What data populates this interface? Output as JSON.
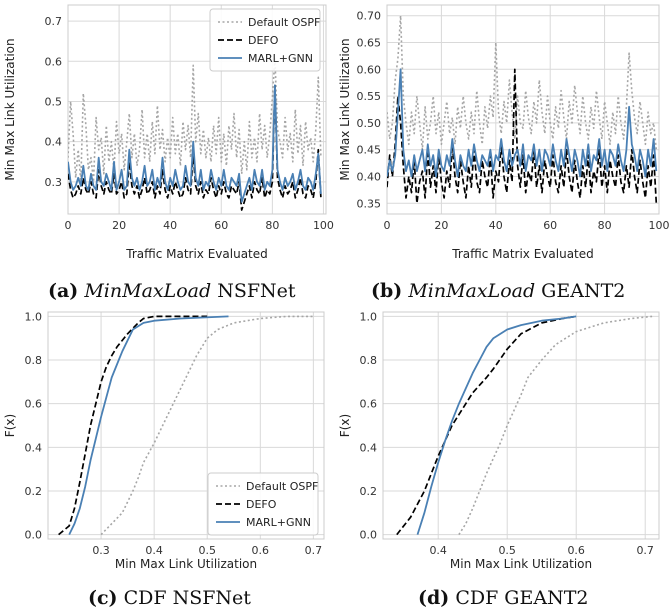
{
  "colors": {
    "ospf": "#a6a6a6",
    "defo": "#000000",
    "marl": "#4a80b4",
    "grid": "#d9d9d9",
    "axes": "#cccccc"
  },
  "captions": [
    {
      "label": "(a)",
      "italic": "MinMaxLoad",
      "rest": "NSFNet"
    },
    {
      "label": "(b)",
      "italic": "MinMaxLoad",
      "rest": "GEANT2"
    },
    {
      "label": "(c)",
      "italic": "",
      "rest": "CDF NSFNet"
    },
    {
      "label": "(d)",
      "italic": "",
      "rest": "CDF GEANT2"
    }
  ],
  "chart_data": [
    {
      "type": "line",
      "xlabel": "Traffic Matrix Evaluated",
      "ylabel": "Min Max Link Utilization",
      "xlim": [
        0,
        101
      ],
      "ylim": [
        0.22,
        0.74
      ],
      "xticks": [
        0,
        20,
        40,
        60,
        80,
        100
      ],
      "yticks": [
        0.3,
        0.4,
        0.5,
        0.6,
        0.7
      ],
      "ytick_labels": [
        "0.3",
        "0.4",
        "0.5",
        "0.6",
        "0.7"
      ],
      "grid": true,
      "legend": "top-right",
      "series": [
        {
          "name": "Default OSPF",
          "style": "dotted",
          "values": [
            0.36,
            0.5,
            0.42,
            0.31,
            0.38,
            0.3,
            0.52,
            0.44,
            0.33,
            0.36,
            0.3,
            0.46,
            0.38,
            0.41,
            0.32,
            0.44,
            0.35,
            0.4,
            0.33,
            0.45,
            0.37,
            0.42,
            0.33,
            0.4,
            0.47,
            0.36,
            0.42,
            0.34,
            0.38,
            0.48,
            0.36,
            0.42,
            0.35,
            0.45,
            0.37,
            0.49,
            0.38,
            0.43,
            0.35,
            0.41,
            0.36,
            0.46,
            0.37,
            0.42,
            0.34,
            0.45,
            0.38,
            0.44,
            0.36,
            0.59,
            0.4,
            0.47,
            0.37,
            0.43,
            0.36,
            0.41,
            0.35,
            0.44,
            0.37,
            0.46,
            0.35,
            0.42,
            0.34,
            0.44,
            0.38,
            0.47,
            0.36,
            0.43,
            0.32,
            0.4,
            0.33,
            0.45,
            0.36,
            0.41,
            0.35,
            0.47,
            0.38,
            0.44,
            0.36,
            0.42,
            0.51,
            0.61,
            0.43,
            0.4,
            0.36,
            0.46,
            0.38,
            0.42,
            0.35,
            0.48,
            0.37,
            0.44,
            0.34,
            0.45,
            0.38,
            0.41,
            0.35,
            0.43,
            0.56,
            0.36
          ]
        },
        {
          "name": "DEFO",
          "style": "dashed",
          "values": [
            0.32,
            0.28,
            0.26,
            0.27,
            0.29,
            0.27,
            0.31,
            0.28,
            0.27,
            0.3,
            0.27,
            0.26,
            0.33,
            0.29,
            0.27,
            0.3,
            0.28,
            0.27,
            0.32,
            0.27,
            0.28,
            0.3,
            0.26,
            0.27,
            0.35,
            0.29,
            0.27,
            0.29,
            0.26,
            0.28,
            0.31,
            0.27,
            0.28,
            0.3,
            0.26,
            0.29,
            0.27,
            0.33,
            0.28,
            0.26,
            0.29,
            0.27,
            0.3,
            0.28,
            0.26,
            0.27,
            0.31,
            0.28,
            0.27,
            0.37,
            0.29,
            0.27,
            0.3,
            0.26,
            0.28,
            0.27,
            0.31,
            0.28,
            0.26,
            0.29,
            0.27,
            0.3,
            0.27,
            0.26,
            0.29,
            0.28,
            0.27,
            0.3,
            0.23,
            0.25,
            0.27,
            0.29,
            0.26,
            0.3,
            0.28,
            0.27,
            0.31,
            0.26,
            0.28,
            0.27,
            0.3,
            0.54,
            0.31,
            0.28,
            0.26,
            0.29,
            0.27,
            0.28,
            0.3,
            0.26,
            0.28,
            0.31,
            0.27,
            0.26,
            0.29,
            0.28,
            0.26,
            0.3,
            0.38,
            0.26
          ]
        },
        {
          "name": "MARL+GNN",
          "style": "solid",
          "values": [
            0.35,
            0.3,
            0.28,
            0.29,
            0.31,
            0.29,
            0.34,
            0.29,
            0.28,
            0.32,
            0.29,
            0.28,
            0.36,
            0.3,
            0.29,
            0.32,
            0.3,
            0.28,
            0.35,
            0.28,
            0.3,
            0.33,
            0.28,
            0.29,
            0.38,
            0.31,
            0.29,
            0.31,
            0.28,
            0.3,
            0.34,
            0.29,
            0.3,
            0.33,
            0.28,
            0.31,
            0.29,
            0.36,
            0.3,
            0.28,
            0.31,
            0.29,
            0.33,
            0.3,
            0.28,
            0.29,
            0.34,
            0.3,
            0.29,
            0.4,
            0.31,
            0.29,
            0.33,
            0.28,
            0.3,
            0.29,
            0.33,
            0.3,
            0.28,
            0.31,
            0.29,
            0.33,
            0.29,
            0.28,
            0.31,
            0.3,
            0.29,
            0.32,
            0.25,
            0.27,
            0.29,
            0.31,
            0.28,
            0.33,
            0.3,
            0.29,
            0.33,
            0.28,
            0.3,
            0.29,
            0.33,
            0.54,
            0.33,
            0.3,
            0.28,
            0.31,
            0.29,
            0.3,
            0.32,
            0.28,
            0.3,
            0.33,
            0.29,
            0.28,
            0.31,
            0.3,
            0.28,
            0.32,
            0.37,
            0.27
          ]
        }
      ]
    },
    {
      "type": "line",
      "xlabel": "Traffic Matrix Evaluated",
      "ylabel": "Min Max Link Utilization",
      "xlim": [
        0,
        100
      ],
      "ylim": [
        0.33,
        0.72
      ],
      "xticks": [
        0,
        20,
        40,
        60,
        80,
        100
      ],
      "yticks": [
        0.35,
        0.4,
        0.45,
        0.5,
        0.55,
        0.6,
        0.65,
        0.7
      ],
      "ytick_labels": [
        "0.35",
        "0.40",
        "0.45",
        "0.50",
        "0.55",
        "0.60",
        "0.65",
        "0.70"
      ],
      "grid": true,
      "legend": "",
      "series": [
        {
          "name": "Default OSPF",
          "style": "dotted",
          "values": [
            0.52,
            0.47,
            0.5,
            0.58,
            0.62,
            0.7,
            0.55,
            0.5,
            0.46,
            0.52,
            0.48,
            0.55,
            0.5,
            0.45,
            0.53,
            0.47,
            0.5,
            0.55,
            0.48,
            0.52,
            0.46,
            0.5,
            0.54,
            0.48,
            0.51,
            0.46,
            0.53,
            0.49,
            0.55,
            0.5,
            0.47,
            0.52,
            0.48,
            0.56,
            0.5,
            0.46,
            0.53,
            0.49,
            0.55,
            0.51,
            0.65,
            0.52,
            0.48,
            0.54,
            0.5,
            0.58,
            0.52,
            0.47,
            0.55,
            0.5,
            0.49,
            0.56,
            0.51,
            0.48,
            0.54,
            0.5,
            0.58,
            0.52,
            0.48,
            0.55,
            0.5,
            0.47,
            0.53,
            0.49,
            0.56,
            0.51,
            0.47,
            0.54,
            0.5,
            0.57,
            0.52,
            0.48,
            0.55,
            0.5,
            0.47,
            0.53,
            0.49,
            0.56,
            0.51,
            0.47,
            0.54,
            0.5,
            0.46,
            0.52,
            0.48,
            0.55,
            0.5,
            0.47,
            0.53,
            0.63,
            0.56,
            0.51,
            0.48,
            0.54,
            0.5,
            0.46,
            0.52,
            0.48,
            0.5,
            0.45
          ]
        },
        {
          "name": "DEFO",
          "style": "dashed",
          "values": [
            0.38,
            0.44,
            0.4,
            0.46,
            0.55,
            0.5,
            0.42,
            0.36,
            0.4,
            0.37,
            0.43,
            0.35,
            0.39,
            0.41,
            0.36,
            0.45,
            0.38,
            0.42,
            0.37,
            0.44,
            0.39,
            0.36,
            0.41,
            0.38,
            0.46,
            0.4,
            0.37,
            0.43,
            0.39,
            0.36,
            0.42,
            0.38,
            0.45,
            0.39,
            0.37,
            0.43,
            0.4,
            0.38,
            0.44,
            0.36,
            0.41,
            0.39,
            0.46,
            0.4,
            0.37,
            0.43,
            0.39,
            0.6,
            0.42,
            0.38,
            0.44,
            0.37,
            0.41,
            0.39,
            0.45,
            0.38,
            0.42,
            0.37,
            0.43,
            0.4,
            0.38,
            0.44,
            0.39,
            0.37,
            0.42,
            0.38,
            0.45,
            0.4,
            0.37,
            0.43,
            0.39,
            0.36,
            0.42,
            0.38,
            0.44,
            0.37,
            0.41,
            0.39,
            0.45,
            0.38,
            0.42,
            0.37,
            0.43,
            0.4,
            0.38,
            0.44,
            0.39,
            0.37,
            0.42,
            0.38,
            0.45,
            0.4,
            0.37,
            0.43,
            0.39,
            0.36,
            0.42,
            0.38,
            0.44,
            0.35
          ]
        },
        {
          "name": "MARL+GNN",
          "style": "solid",
          "values": [
            0.4,
            0.43,
            0.41,
            0.44,
            0.52,
            0.6,
            0.45,
            0.41,
            0.43,
            0.4,
            0.44,
            0.41,
            0.43,
            0.45,
            0.41,
            0.46,
            0.42,
            0.44,
            0.4,
            0.45,
            0.42,
            0.41,
            0.44,
            0.42,
            0.47,
            0.43,
            0.4,
            0.44,
            0.42,
            0.41,
            0.45,
            0.42,
            0.46,
            0.43,
            0.41,
            0.44,
            0.43,
            0.42,
            0.45,
            0.41,
            0.44,
            0.43,
            0.47,
            0.43,
            0.41,
            0.45,
            0.42,
            0.44,
            0.45,
            0.42,
            0.46,
            0.41,
            0.44,
            0.43,
            0.46,
            0.42,
            0.45,
            0.41,
            0.45,
            0.44,
            0.42,
            0.46,
            0.43,
            0.41,
            0.45,
            0.42,
            0.47,
            0.44,
            0.41,
            0.45,
            0.43,
            0.4,
            0.45,
            0.42,
            0.46,
            0.41,
            0.44,
            0.43,
            0.47,
            0.42,
            0.45,
            0.41,
            0.45,
            0.44,
            0.42,
            0.46,
            0.43,
            0.41,
            0.45,
            0.53,
            0.46,
            0.44,
            0.41,
            0.45,
            0.43,
            0.4,
            0.45,
            0.42,
            0.47,
            0.41
          ]
        }
      ]
    },
    {
      "type": "line",
      "xlabel": "Min Max Link Utilization",
      "ylabel": "F(x)",
      "xlim": [
        0.2,
        0.72
      ],
      "ylim": [
        -0.02,
        1.02
      ],
      "xticks": [
        0.3,
        0.4,
        0.5,
        0.6,
        0.7
      ],
      "xtick_labels": [
        "0.3",
        "0.4",
        "0.5",
        "0.6",
        "0.7"
      ],
      "yticks": [
        0.0,
        0.2,
        0.4,
        0.6,
        0.8,
        1.0
      ],
      "ytick_labels": [
        "0.0",
        "0.2",
        "0.4",
        "0.6",
        "0.8",
        "1.0"
      ],
      "grid": true,
      "legend": "bottom-right",
      "series": [
        {
          "name": "Default OSPF",
          "style": "dotted",
          "x": [
            0.3,
            0.32,
            0.34,
            0.36,
            0.37,
            0.38,
            0.4,
            0.42,
            0.44,
            0.46,
            0.48,
            0.5,
            0.52,
            0.55,
            0.6,
            0.65,
            0.7
          ],
          "y": [
            0.0,
            0.05,
            0.1,
            0.2,
            0.26,
            0.33,
            0.42,
            0.52,
            0.62,
            0.72,
            0.82,
            0.9,
            0.94,
            0.97,
            0.99,
            1.0,
            1.0
          ]
        },
        {
          "name": "DEFO",
          "style": "dashed",
          "x": [
            0.22,
            0.24,
            0.25,
            0.26,
            0.27,
            0.28,
            0.29,
            0.3,
            0.31,
            0.32,
            0.33,
            0.35,
            0.37,
            0.38,
            0.4,
            0.45,
            0.5
          ],
          "y": [
            0.0,
            0.04,
            0.12,
            0.24,
            0.37,
            0.5,
            0.6,
            0.7,
            0.77,
            0.82,
            0.86,
            0.92,
            0.97,
            0.99,
            1.0,
            1.0,
            1.0
          ]
        },
        {
          "name": "MARL+GNN",
          "style": "solid",
          "x": [
            0.24,
            0.25,
            0.26,
            0.27,
            0.28,
            0.29,
            0.3,
            0.31,
            0.32,
            0.33,
            0.34,
            0.35,
            0.36,
            0.38,
            0.4,
            0.45,
            0.54
          ],
          "y": [
            0.0,
            0.05,
            0.12,
            0.22,
            0.34,
            0.44,
            0.54,
            0.63,
            0.72,
            0.78,
            0.84,
            0.89,
            0.94,
            0.97,
            0.98,
            0.99,
            1.0
          ]
        }
      ]
    },
    {
      "type": "line",
      "xlabel": "Min Max Link Utilization",
      "ylabel": "F(x)",
      "xlim": [
        0.32,
        0.72
      ],
      "ylim": [
        -0.02,
        1.02
      ],
      "xticks": [
        0.4,
        0.5,
        0.6,
        0.7
      ],
      "xtick_labels": [
        "0.4",
        "0.5",
        "0.6",
        "0.7"
      ],
      "yticks": [
        0.0,
        0.2,
        0.4,
        0.6,
        0.8,
        1.0
      ],
      "ytick_labels": [
        "0.0",
        "0.2",
        "0.4",
        "0.6",
        "0.8",
        "1.0"
      ],
      "grid": true,
      "legend": "",
      "series": [
        {
          "name": "Default OSPF",
          "style": "dotted",
          "x": [
            0.43,
            0.44,
            0.45,
            0.46,
            0.47,
            0.48,
            0.49,
            0.5,
            0.51,
            0.52,
            0.53,
            0.55,
            0.57,
            0.6,
            0.64,
            0.68,
            0.71
          ],
          "y": [
            0.0,
            0.05,
            0.12,
            0.2,
            0.28,
            0.35,
            0.42,
            0.5,
            0.57,
            0.64,
            0.72,
            0.8,
            0.87,
            0.93,
            0.97,
            0.99,
            1.0
          ]
        },
        {
          "name": "DEFO",
          "style": "dashed",
          "x": [
            0.34,
            0.36,
            0.38,
            0.39,
            0.4,
            0.41,
            0.42,
            0.43,
            0.44,
            0.45,
            0.47,
            0.48,
            0.5,
            0.52,
            0.55,
            0.58,
            0.6
          ],
          "y": [
            0.0,
            0.08,
            0.2,
            0.28,
            0.36,
            0.43,
            0.5,
            0.55,
            0.6,
            0.65,
            0.72,
            0.76,
            0.85,
            0.92,
            0.97,
            0.99,
            1.0
          ]
        },
        {
          "name": "MARL+GNN",
          "style": "solid",
          "x": [
            0.37,
            0.38,
            0.39,
            0.4,
            0.41,
            0.42,
            0.43,
            0.44,
            0.45,
            0.46,
            0.47,
            0.48,
            0.5,
            0.52,
            0.55,
            0.58,
            0.6
          ],
          "y": [
            0.0,
            0.1,
            0.22,
            0.33,
            0.43,
            0.52,
            0.6,
            0.67,
            0.74,
            0.8,
            0.86,
            0.9,
            0.94,
            0.96,
            0.98,
            0.99,
            1.0
          ]
        }
      ]
    }
  ]
}
